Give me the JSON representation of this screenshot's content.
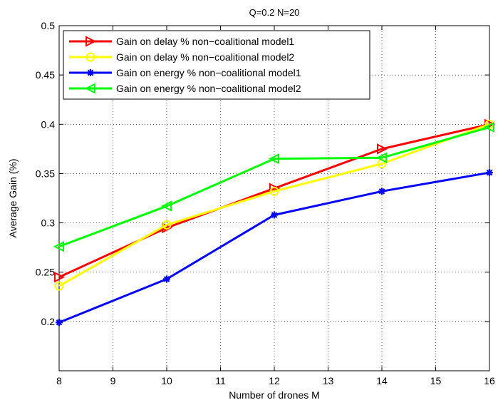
{
  "chart_data": {
    "type": "line",
    "title": "Q=0.2  N=20",
    "xlabel": "Number of drones M",
    "ylabel": "Average Gain (%)",
    "xlim": [
      8,
      16
    ],
    "ylim": [
      0.15,
      0.5
    ],
    "x_ticks": [
      "8",
      "9",
      "10",
      "11",
      "12",
      "13",
      "14",
      "15",
      "16"
    ],
    "y_ticks": [
      "0.2",
      "0.25",
      "0.3",
      "0.35",
      "0.4",
      "0.45",
      "0.5"
    ],
    "grid": true,
    "legend_position": "top-left",
    "series": [
      {
        "name": "Gain on delay % non−coalitional model1",
        "color": "#ff0000",
        "marker": "triangle-right",
        "x": [
          8,
          10,
          12,
          14,
          16
        ],
        "y": [
          0.245,
          0.295,
          0.335,
          0.375,
          0.4
        ]
      },
      {
        "name": "Gain on delay % non−coalitional model2",
        "color": "#ffff00",
        "marker": "circle",
        "x": [
          8,
          10,
          12,
          14,
          16
        ],
        "y": [
          0.236,
          0.298,
          0.332,
          0.36,
          0.4
        ]
      },
      {
        "name": "Gain on energy % non−coalitional model1",
        "color": "#0000ff",
        "marker": "star",
        "x": [
          8,
          10,
          12,
          14,
          16
        ],
        "y": [
          0.199,
          0.243,
          0.308,
          0.332,
          0.351
        ]
      },
      {
        "name": "Gain on energy % non−coalitional model2",
        "color": "#00ff00",
        "marker": "triangle-left",
        "x": [
          8,
          10,
          12,
          14,
          16
        ],
        "y": [
          0.276,
          0.317,
          0.365,
          0.366,
          0.397
        ]
      }
    ]
  }
}
